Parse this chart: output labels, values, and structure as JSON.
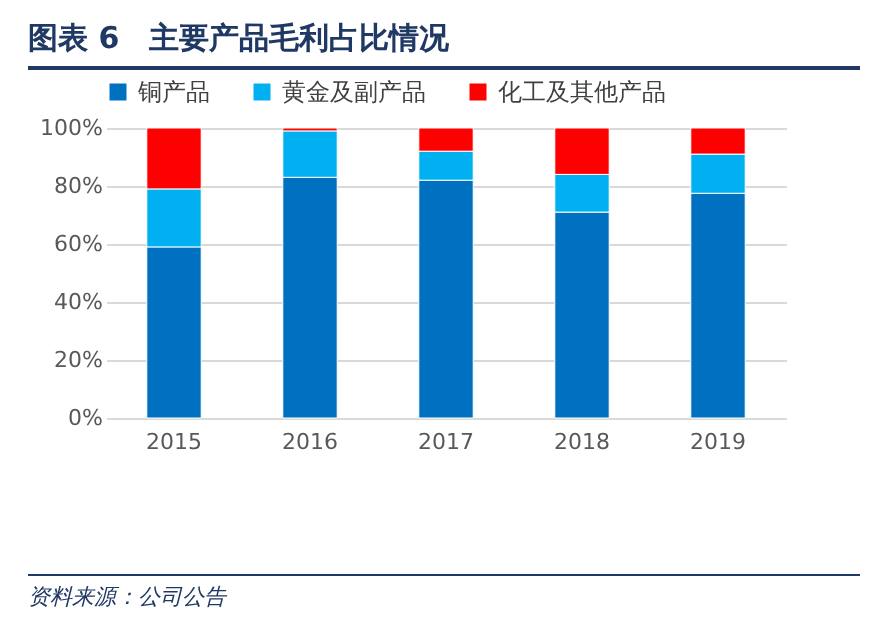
{
  "chart_data": {
    "type": "bar",
    "title": "图表 6　主要产品毛利占比情况",
    "categories": [
      "2015",
      "2016",
      "2017",
      "2018",
      "2019"
    ],
    "series": [
      {
        "name": "铜产品",
        "color": "#0070c0",
        "values": [
          59,
          83,
          82,
          71,
          77.5
        ]
      },
      {
        "name": "黄金及副产品",
        "color": "#00b0f0",
        "values": [
          20,
          16,
          10,
          13,
          13.5
        ]
      },
      {
        "name": "化工及其他产品",
        "color": "#ff0000",
        "values": [
          21,
          1,
          8,
          16,
          9
        ]
      }
    ],
    "stacked": true,
    "ylim": [
      0,
      100
    ],
    "yticks": [
      {
        "value": 0,
        "label": "0%"
      },
      {
        "value": 20,
        "label": "20%"
      },
      {
        "value": 40,
        "label": "40%"
      },
      {
        "value": 60,
        "label": "60%"
      },
      {
        "value": 80,
        "label": "80%"
      },
      {
        "value": 100,
        "label": "100%"
      }
    ],
    "grid": "y",
    "legend": "top",
    "annotations": [
      "资料来源：公司公告"
    ]
  }
}
